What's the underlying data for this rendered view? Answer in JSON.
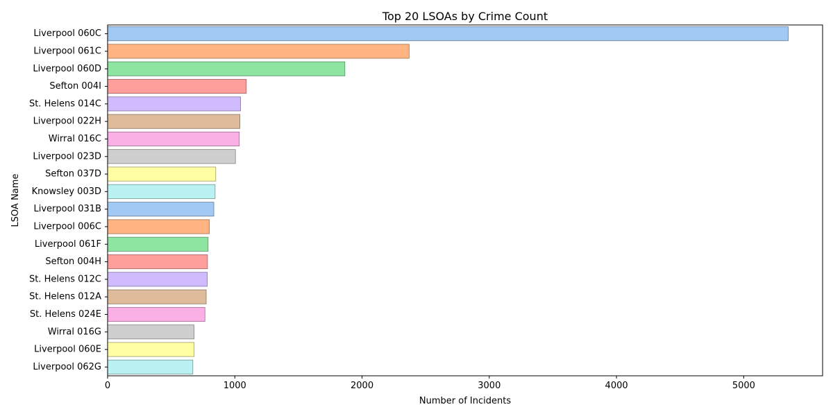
{
  "chart_data": {
    "type": "bar",
    "orientation": "horizontal",
    "title": "Top 20 LSOAs by Crime Count",
    "xlabel": "Number of Incidents",
    "ylabel": "LSOA Name",
    "xlim": [
      0,
      5620
    ],
    "xticks": [
      0,
      1000,
      2000,
      3000,
      4000,
      5000
    ],
    "grid": false,
    "legend": "none",
    "categories": [
      "Liverpool 060C",
      "Liverpool 061C",
      "Liverpool 060D",
      "Sefton 004I",
      "St. Helens 014C",
      "Liverpool 022H",
      "Wirral 016C",
      "Liverpool 023D",
      "Sefton 037D",
      "Knowsley 003D",
      "Liverpool 031B",
      "Liverpool 006C",
      "Liverpool 061F",
      "Sefton 004H",
      "St. Helens 012C",
      "St. Helens 012A",
      "St. Helens 024E",
      "Wirral 016G",
      "Liverpool 060E",
      "Liverpool 062G"
    ],
    "values": [
      5350,
      2370,
      1865,
      1090,
      1045,
      1040,
      1035,
      1005,
      850,
      845,
      835,
      800,
      790,
      785,
      783,
      775,
      765,
      680,
      680,
      670
    ],
    "colors": [
      "#a1c9f4",
      "#ffb482",
      "#8de5a1",
      "#ff9f9b",
      "#d0bbff",
      "#debb9b",
      "#fab0e4",
      "#cfcfcf",
      "#fffea3",
      "#b9f2f0"
    ]
  }
}
